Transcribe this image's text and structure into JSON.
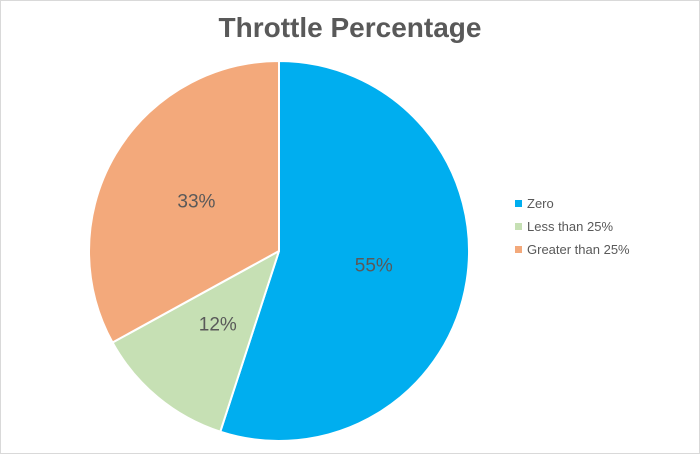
{
  "chart_data": {
    "type": "pie",
    "title": "Throttle Percentage",
    "categories": [
      "Zero",
      "Less than 25%",
      "Greater than 25%"
    ],
    "values": [
      55,
      12,
      33
    ],
    "data_labels": [
      "55%",
      "12%",
      "33%"
    ],
    "colors": [
      "#00AEEF",
      "#C6E0B4",
      "#F3A97B"
    ],
    "start_angle_deg": 0,
    "direction": "clockwise",
    "slice_separator_color": "#FFFFFF",
    "text_color": "#595959",
    "legend": {
      "position": "right",
      "entries": [
        "Zero",
        "Less than 25%",
        "Greater than 25%"
      ]
    }
  }
}
